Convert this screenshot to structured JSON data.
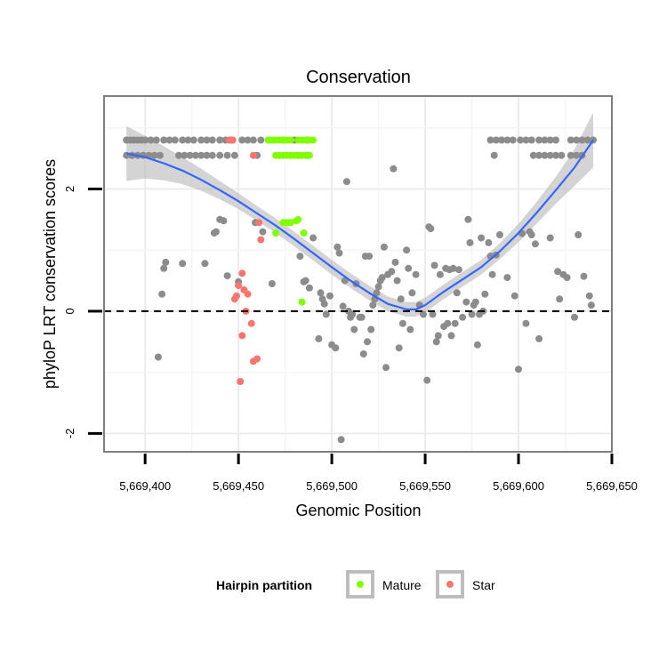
{
  "chart_data": {
    "type": "scatter",
    "title": "Conservation",
    "xlabel": "Genomic Position",
    "ylabel": "phyloP LRT conservation scores",
    "xlim": [
      5669378,
      5669650
    ],
    "ylim": [
      -2.3,
      3.52
    ],
    "x_ticks": [
      5669400,
      5669450,
      5669500,
      5669550,
      5669600,
      5669650
    ],
    "x_tick_labels": [
      "5,669,400",
      "5,669,450",
      "5,669,500",
      "5,669,550",
      "5,669,600",
      "5,669,650"
    ],
    "y_ticks": [
      -2,
      0,
      2
    ],
    "y_tick_labels": [
      "-2",
      "0",
      "2"
    ],
    "reference_line": {
      "y": 0,
      "style": "dashed"
    },
    "legend": {
      "title": "Hairpin partition",
      "entries": [
        {
          "name": "Mature",
          "color": "#7fff00"
        },
        {
          "name": "Star",
          "color": "#f8766d"
        }
      ],
      "placement": "bottom"
    },
    "colors": {
      "other": "#8c8c8c",
      "smooth_line": "#3366ff",
      "ribbon": "#bdbdbd"
    },
    "series": [
      {
        "name": "Other",
        "points": [
          [
            5669390,
            2.8
          ],
          [
            5669392,
            2.8
          ],
          [
            5669394,
            2.8
          ],
          [
            5669396,
            2.8
          ],
          [
            5669398,
            2.8
          ],
          [
            5669400,
            2.8
          ],
          [
            5669403,
            2.8
          ],
          [
            5669406,
            2.8
          ],
          [
            5669410,
            2.8
          ],
          [
            5669413,
            2.8
          ],
          [
            5669416,
            2.8
          ],
          [
            5669420,
            2.8
          ],
          [
            5669423,
            2.8
          ],
          [
            5669426,
            2.8
          ],
          [
            5669430,
            2.8
          ],
          [
            5669433,
            2.8
          ],
          [
            5669436,
            2.8
          ],
          [
            5669440,
            2.8
          ],
          [
            5669443,
            2.8
          ],
          [
            5669446,
            2.8
          ],
          [
            5669452,
            2.8
          ],
          [
            5669455,
            2.8
          ],
          [
            5669458,
            2.8
          ],
          [
            5669462,
            2.8
          ],
          [
            5669466,
            2.8
          ],
          [
            5669474,
            2.8
          ],
          [
            5669480,
            2.8
          ],
          [
            5669487,
            2.8
          ],
          [
            5669390,
            2.55
          ],
          [
            5669393,
            2.55
          ],
          [
            5669396,
            2.55
          ],
          [
            5669399,
            2.55
          ],
          [
            5669402,
            2.55
          ],
          [
            5669405,
            2.55
          ],
          [
            5669408,
            2.55
          ],
          [
            5669418,
            2.55
          ],
          [
            5669421,
            2.55
          ],
          [
            5669424,
            2.55
          ],
          [
            5669427,
            2.55
          ],
          [
            5669430,
            2.55
          ],
          [
            5669433,
            2.55
          ],
          [
            5669436,
            2.55
          ],
          [
            5669440,
            2.55
          ],
          [
            5669444,
            2.55
          ],
          [
            5669448,
            2.55
          ],
          [
            5669460,
            2.55
          ],
          [
            5669478,
            2.55
          ],
          [
            5669482,
            2.55
          ],
          [
            5669487,
            2.55
          ],
          [
            5669585,
            2.8
          ],
          [
            5669588,
            2.8
          ],
          [
            5669591,
            2.8
          ],
          [
            5669594,
            2.8
          ],
          [
            5669597,
            2.8
          ],
          [
            5669601,
            2.8
          ],
          [
            5669604,
            2.8
          ],
          [
            5669607,
            2.8
          ],
          [
            5669611,
            2.8
          ],
          [
            5669614,
            2.8
          ],
          [
            5669617,
            2.8
          ],
          [
            5669620,
            2.8
          ],
          [
            5669628,
            2.8
          ],
          [
            5669631,
            2.8
          ],
          [
            5669634,
            2.8
          ],
          [
            5669637,
            2.8
          ],
          [
            5669640,
            2.8
          ],
          [
            5669587,
            2.55
          ],
          [
            5669608,
            2.55
          ],
          [
            5669611,
            2.55
          ],
          [
            5669614,
            2.55
          ],
          [
            5669617,
            2.55
          ],
          [
            5669620,
            2.55
          ],
          [
            5669623,
            2.55
          ],
          [
            5669628,
            2.55
          ],
          [
            5669631,
            2.55
          ],
          [
            5669634,
            2.55
          ],
          [
            5669407,
            -0.75
          ],
          [
            5669409,
            0.28
          ],
          [
            5669410,
            0.7
          ],
          [
            5669411,
            0.8
          ],
          [
            5669420,
            0.78
          ],
          [
            5669432,
            0.78
          ],
          [
            5669437,
            1.28
          ],
          [
            5669438,
            1.3
          ],
          [
            5669440,
            1.5
          ],
          [
            5669442,
            1.48
          ],
          [
            5669444,
            0.58
          ],
          [
            5669450,
            0.48
          ],
          [
            5669459,
            1.45
          ],
          [
            5669463,
            1.3
          ],
          [
            5669468,
            0.45
          ],
          [
            5669483,
            0.9
          ],
          [
            5669485,
            0.48
          ],
          [
            5669486,
            0.5
          ],
          [
            5669488,
            0.38
          ],
          [
            5669490,
            1.2
          ],
          [
            5669493,
            -0.45
          ],
          [
            5669494,
            0.3
          ],
          [
            5669495,
            0.2
          ],
          [
            5669496,
            0.12
          ],
          [
            5669497,
            -0.05
          ],
          [
            5669499,
            0.25
          ],
          [
            5669500,
            -0.55
          ],
          [
            5669502,
            -0.6
          ],
          [
            5669503,
            1.05
          ],
          [
            5669504,
            0.95
          ],
          [
            5669505,
            -2.1
          ],
          [
            5669506,
            0.08
          ],
          [
            5669507,
            0.5
          ],
          [
            5669508,
            2.12
          ],
          [
            5669509,
            0.0
          ],
          [
            5669510,
            -0.1
          ],
          [
            5669511,
            -0.05
          ],
          [
            5669512,
            -0.3
          ],
          [
            5669513,
            0.45
          ],
          [
            5669515,
            -0.1
          ],
          [
            5669516,
            -0.1
          ],
          [
            5669517,
            -0.7
          ],
          [
            5669518,
            0.9
          ],
          [
            5669519,
            -0.5
          ],
          [
            5669520,
            0.9
          ],
          [
            5669521,
            -0.3
          ],
          [
            5669522,
            0.1
          ],
          [
            5669523,
            0.2
          ],
          [
            5669524,
            0.3
          ],
          [
            5669525,
            0.4
          ],
          [
            5669526,
            0.5
          ],
          [
            5669527,
            0.55
          ],
          [
            5669528,
            1.05
          ],
          [
            5669529,
            -0.92
          ],
          [
            5669530,
            0.6
          ],
          [
            5669532,
            0.65
          ],
          [
            5669533,
            2.33
          ],
          [
            5669534,
            0.8
          ],
          [
            5669535,
            0.5
          ],
          [
            5669536,
            -0.6
          ],
          [
            5669537,
            0.2
          ],
          [
            5669538,
            -0.2
          ],
          [
            5669540,
            1.0
          ],
          [
            5669541,
            0.7
          ],
          [
            5669542,
            -0.3
          ],
          [
            5669543,
            0.3
          ],
          [
            5669545,
            0.6
          ],
          [
            5669547,
            0.1
          ],
          [
            5669549,
            -0.05
          ],
          [
            5669551,
            -1.13
          ],
          [
            5669552,
            1.38
          ],
          [
            5669553,
            1.35
          ],
          [
            5669554,
            -0.05
          ],
          [
            5669555,
            0.75
          ],
          [
            5669556,
            -0.5
          ],
          [
            5669557,
            -0.4
          ],
          [
            5669558,
            0.6
          ],
          [
            5669560,
            -0.25
          ],
          [
            5669561,
            0.7
          ],
          [
            5669562,
            -0.2
          ],
          [
            5669563,
            0.68
          ],
          [
            5669564,
            -0.4
          ],
          [
            5669565,
            0.7
          ],
          [
            5669566,
            -0.2
          ],
          [
            5669567,
            0.3
          ],
          [
            5669568,
            0.68
          ],
          [
            5669570,
            -0.1
          ],
          [
            5669572,
            0.15
          ],
          [
            5669573,
            1.5
          ],
          [
            5669574,
            1.12
          ],
          [
            5669575,
            -0.05
          ],
          [
            5669576,
            0.1
          ],
          [
            5669577,
            0.15
          ],
          [
            5669578,
            -0.55
          ],
          [
            5669579,
            -0.05
          ],
          [
            5669580,
            1.2
          ],
          [
            5669581,
            0.0
          ],
          [
            5669582,
            0.28
          ],
          [
            5669584,
            1.12
          ],
          [
            5669585,
            0.9
          ],
          [
            5669586,
            0.6
          ],
          [
            5669588,
            0.92
          ],
          [
            5669590,
            1.25
          ],
          [
            5669594,
            0.55
          ],
          [
            5669598,
            0.25
          ],
          [
            5669600,
            -0.95
          ],
          [
            5669602,
            1.27
          ],
          [
            5669604,
            -0.2
          ],
          [
            5669606,
            1.3
          ],
          [
            5669607,
            1.25
          ],
          [
            5669609,
            1.1
          ],
          [
            5669611,
            -0.45
          ],
          [
            5669617,
            1.2
          ],
          [
            5669621,
            0.65
          ],
          [
            5669622,
            0.2
          ],
          [
            5669624,
            0.6
          ],
          [
            5669626,
            0.55
          ],
          [
            5669630,
            -0.1
          ],
          [
            5669632,
            1.25
          ],
          [
            5669635,
            0.57
          ],
          [
            5669638,
            0.25
          ],
          [
            5669639,
            0.1
          ]
        ]
      },
      {
        "name": "Mature",
        "points": [
          [
            5669466,
            2.8
          ],
          [
            5669468,
            2.8
          ],
          [
            5669470,
            2.8
          ],
          [
            5669472,
            2.8
          ],
          [
            5669474,
            2.8
          ],
          [
            5669476,
            2.8
          ],
          [
            5669478,
            2.8
          ],
          [
            5669482,
            2.8
          ],
          [
            5669484,
            2.8
          ],
          [
            5669486,
            2.8
          ],
          [
            5669488,
            2.8
          ],
          [
            5669490,
            2.8
          ],
          [
            5669470,
            2.55
          ],
          [
            5669472,
            2.55
          ],
          [
            5669474,
            2.55
          ],
          [
            5669476,
            2.55
          ],
          [
            5669478,
            2.55
          ],
          [
            5669480,
            2.55
          ],
          [
            5669482,
            2.55
          ],
          [
            5669484,
            2.55
          ],
          [
            5669486,
            2.55
          ],
          [
            5669488,
            2.55
          ],
          [
            5669474,
            1.45
          ],
          [
            5669476,
            1.45
          ],
          [
            5669478,
            1.45
          ],
          [
            5669481,
            1.48
          ],
          [
            5669482,
            1.5
          ],
          [
            5669470,
            1.28
          ],
          [
            5669485,
            1.28
          ],
          [
            5669484,
            0.15
          ]
        ]
      },
      {
        "name": "Star",
        "points": [
          [
            5669445,
            2.8
          ],
          [
            5669447,
            2.8
          ],
          [
            5669458,
            2.55
          ],
          [
            5669461,
            1.45
          ],
          [
            5669462,
            1.17
          ],
          [
            5669448,
            0.2
          ],
          [
            5669449,
            0.25
          ],
          [
            5669452,
            0.62
          ],
          [
            5669450,
            0.42
          ],
          [
            5669453,
            0.35
          ],
          [
            5669455,
            0.28
          ],
          [
            5669454,
            0.0
          ],
          [
            5669457,
            -0.2
          ],
          [
            5669452,
            -0.4
          ],
          [
            5669460,
            -0.78
          ],
          [
            5669458,
            -0.82
          ],
          [
            5669451,
            -1.15
          ]
        ]
      }
    ],
    "smooth": {
      "x": [
        5669390,
        5669400,
        5669410,
        5669420,
        5669430,
        5669440,
        5669450,
        5669460,
        5669470,
        5669480,
        5669490,
        5669500,
        5669510,
        5669520,
        5669530,
        5669540,
        5669545,
        5669550,
        5669560,
        5669570,
        5669580,
        5669590,
        5669600,
        5669610,
        5669620,
        5669630,
        5669640
      ],
      "y": [
        2.58,
        2.52,
        2.42,
        2.3,
        2.15,
        1.98,
        1.8,
        1.6,
        1.4,
        1.18,
        0.95,
        0.72,
        0.5,
        0.3,
        0.12,
        0.03,
        0.03,
        0.1,
        0.32,
        0.52,
        0.72,
        0.98,
        1.28,
        1.62,
        1.98,
        2.35,
        2.8
      ],
      "se": [
        0.45,
        0.35,
        0.28,
        0.22,
        0.18,
        0.15,
        0.13,
        0.12,
        0.12,
        0.12,
        0.12,
        0.12,
        0.12,
        0.12,
        0.12,
        0.12,
        0.12,
        0.12,
        0.12,
        0.12,
        0.12,
        0.13,
        0.15,
        0.18,
        0.22,
        0.3,
        0.45
      ]
    }
  }
}
